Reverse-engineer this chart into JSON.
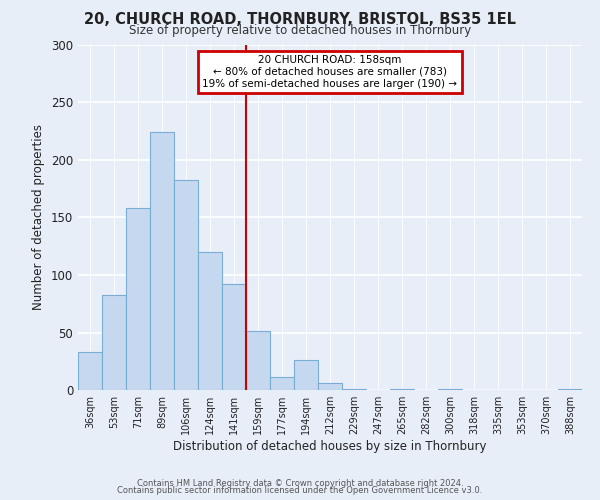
{
  "title": "20, CHURCH ROAD, THORNBURY, BRISTOL, BS35 1EL",
  "subtitle": "Size of property relative to detached houses in Thornbury",
  "xlabel": "Distribution of detached houses by size in Thornbury",
  "ylabel": "Number of detached properties",
  "bar_labels": [
    "36sqm",
    "53sqm",
    "71sqm",
    "89sqm",
    "106sqm",
    "124sqm",
    "141sqm",
    "159sqm",
    "177sqm",
    "194sqm",
    "212sqm",
    "229sqm",
    "247sqm",
    "265sqm",
    "282sqm",
    "300sqm",
    "318sqm",
    "335sqm",
    "353sqm",
    "370sqm",
    "388sqm"
  ],
  "bar_heights": [
    33,
    83,
    158,
    224,
    183,
    120,
    92,
    51,
    11,
    26,
    6,
    1,
    0,
    1,
    0,
    1,
    0,
    0,
    0,
    0,
    1
  ],
  "bar_color": "#c5d8f0",
  "bar_edge_color": "#7aadd4",
  "vline_color": "#cc0000",
  "annotation_title": "20 CHURCH ROAD: 158sqm",
  "annotation_line1": "← 80% of detached houses are smaller (783)",
  "annotation_line2": "19% of semi-detached houses are larger (190) →",
  "annotation_box_color": "#cc0000",
  "ylim": [
    0,
    300
  ],
  "yticks": [
    0,
    50,
    100,
    150,
    200,
    250,
    300
  ],
  "footer1": "Contains HM Land Registry data © Crown copyright and database right 2024.",
  "footer2": "Contains public sector information licensed under the Open Government Licence v3.0.",
  "bg_color": "#e8eef8",
  "plot_bg_color": "#e8eef8"
}
